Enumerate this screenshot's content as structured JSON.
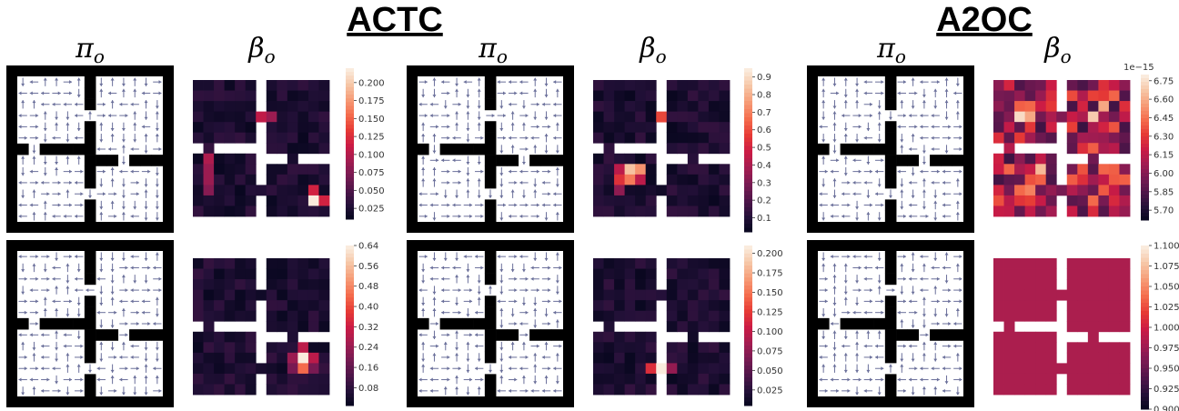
{
  "figure": {
    "methods": [
      {
        "name": "ACTC",
        "policy_label": "π",
        "policy_sub": "o",
        "termination_label": "β",
        "termination_sub": "o"
      },
      {
        "name": "A2OC",
        "policy_label": "π",
        "policy_sub": "o",
        "termination_label": "β",
        "termination_sub": "o"
      }
    ],
    "extra_column_labels": [
      {
        "label": "π",
        "sub": "o"
      },
      {
        "label": "β",
        "sub": "o"
      }
    ],
    "colorbar_exponent": "1e−15"
  },
  "chart_data": [
    {
      "type": "heatmap",
      "panel": "ACTC-option-1-termination",
      "colorbar_ticks": [
        0.025,
        0.05,
        0.075,
        0.1,
        0.125,
        0.15,
        0.175,
        0.2
      ],
      "vmin": 0.01,
      "vmax": 0.22,
      "colormap": "rocket",
      "hotspots": [
        {
          "cell": [
            11,
            11
          ],
          "value": 0.22
        },
        {
          "cell": [
            11,
            12
          ],
          "value": 0.12
        },
        {
          "cell": [
            10,
            11
          ],
          "value": 0.12
        },
        {
          "cell": [
            3,
            6
          ],
          "value": 0.11
        },
        {
          "cell": [
            3,
            7
          ],
          "value": 0.09
        },
        {
          "cell": [
            7,
            1
          ],
          "value": 0.1
        },
        {
          "cell": [
            8,
            1
          ],
          "value": 0.09
        },
        {
          "cell": [
            9,
            1
          ],
          "value": 0.09
        },
        {
          "cell": [
            10,
            1
          ],
          "value": 0.08
        }
      ]
    },
    {
      "type": "heatmap",
      "panel": "ACTC-option-2-termination",
      "colorbar_ticks": [
        0.08,
        0.16,
        0.24,
        0.32,
        0.4,
        0.48,
        0.56,
        0.64
      ],
      "vmin": 0.01,
      "vmax": 0.64,
      "colormap": "rocket",
      "hotspots": [
        {
          "cell": [
            9,
            10
          ],
          "value": 0.64
        },
        {
          "cell": [
            10,
            10
          ],
          "value": 0.45
        },
        {
          "cell": [
            9,
            11
          ],
          "value": 0.3
        },
        {
          "cell": [
            8,
            10
          ],
          "value": 0.3
        },
        {
          "cell": [
            9,
            9
          ],
          "value": 0.25
        },
        {
          "cell": [
            10,
            9
          ],
          "value": 0.2
        },
        {
          "cell": [
            10,
            11
          ],
          "value": 0.2
        }
      ]
    },
    {
      "type": "heatmap",
      "panel": "ACTC-option-3-termination",
      "colorbar_ticks": [
        0.1,
        0.2,
        0.3,
        0.4,
        0.5,
        0.6,
        0.7,
        0.8,
        0.9
      ],
      "vmin": 0.02,
      "vmax": 0.95,
      "colormap": "rocket",
      "hotspots": [
        {
          "cell": [
            1,
            6
          ],
          "value": 0.9
        },
        {
          "cell": [
            2,
            6
          ],
          "value": 0.75
        },
        {
          "cell": [
            3,
            6
          ],
          "value": 0.6
        },
        {
          "cell": [
            4,
            6
          ],
          "value": 0.45
        },
        {
          "cell": [
            8,
            3
          ],
          "value": 0.85
        },
        {
          "cell": [
            8,
            4
          ],
          "value": 0.75
        },
        {
          "cell": [
            9,
            3
          ],
          "value": 0.7
        },
        {
          "cell": [
            9,
            2
          ],
          "value": 0.55
        },
        {
          "cell": [
            8,
            2
          ],
          "value": 0.45
        },
        {
          "cell": [
            9,
            4
          ],
          "value": 0.45
        },
        {
          "cell": [
            10,
            2
          ],
          "value": 0.35
        }
      ]
    },
    {
      "type": "heatmap",
      "panel": "ACTC-option-4-termination",
      "colorbar_ticks": [
        0.025,
        0.05,
        0.075,
        0.1,
        0.125,
        0.15,
        0.175,
        0.2
      ],
      "vmin": 0.005,
      "vmax": 0.21,
      "colormap": "rocket",
      "hotspots": [
        {
          "cell": [
            10,
            6
          ],
          "value": 0.21
        },
        {
          "cell": [
            9,
            6
          ],
          "value": 0.13
        },
        {
          "cell": [
            11,
            6
          ],
          "value": 0.12
        },
        {
          "cell": [
            10,
            5
          ],
          "value": 0.12
        },
        {
          "cell": [
            10,
            7
          ],
          "value": 0.08
        }
      ]
    },
    {
      "type": "heatmap",
      "panel": "A2OC-option-1-termination",
      "colorbar_ticks": [
        5.7,
        5.85,
        6.0,
        6.15,
        6.3,
        6.45,
        6.6,
        6.75
      ],
      "vmin": 5.62,
      "vmax": 6.8,
      "colormap": "rocket",
      "scale_note": "1e−15",
      "hotspots": [
        {
          "cell": [
            3,
            2
          ],
          "value": 6.75
        },
        {
          "cell": [
            3,
            3
          ],
          "value": 6.6
        },
        {
          "cell": [
            3,
            9
          ],
          "value": 6.7
        },
        {
          "cell": [
            2,
            10
          ],
          "value": 6.6
        },
        {
          "cell": [
            8,
            4
          ],
          "value": 6.65
        },
        {
          "cell": [
            9,
            11
          ],
          "value": 6.4
        },
        {
          "cell": [
            10,
            3
          ],
          "value": 6.5
        }
      ]
    },
    {
      "type": "heatmap",
      "panel": "A2OC-option-2-termination",
      "colorbar_ticks": [
        0.9,
        0.925,
        0.95,
        0.975,
        1.0,
        1.025,
        1.05,
        1.075,
        1.1
      ],
      "vmin": 0.9,
      "vmax": 1.1,
      "colormap": "rocket",
      "constant_value": 1.0
    }
  ]
}
